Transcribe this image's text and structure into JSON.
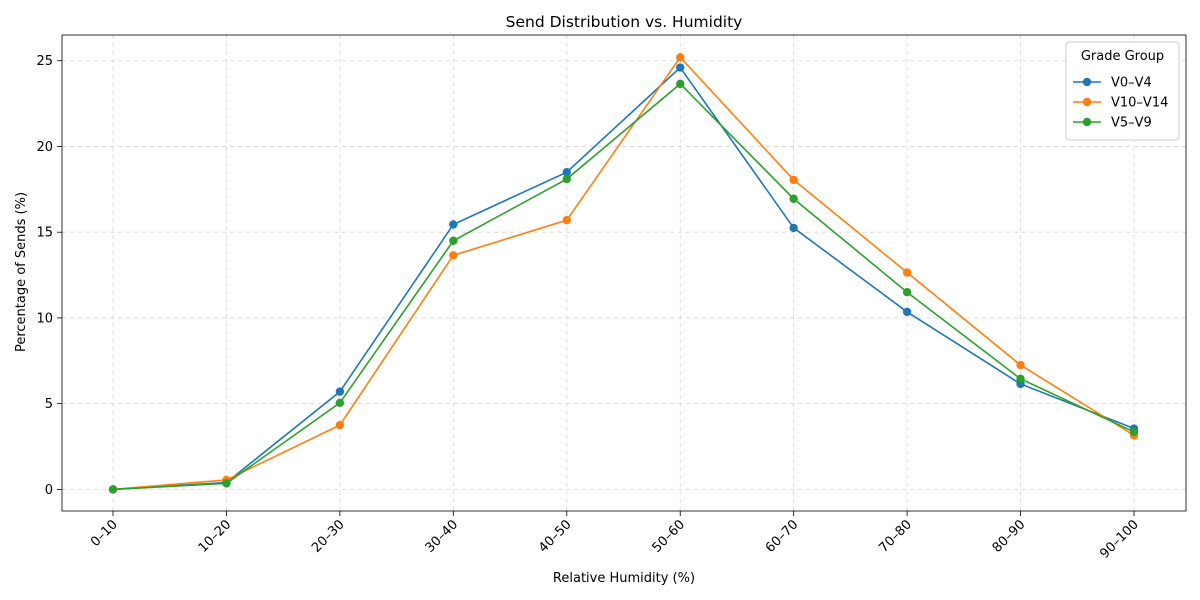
{
  "chart_data": {
    "type": "line",
    "title": "Send Distribution vs. Humidity",
    "xlabel": "Relative Humidity (%)",
    "ylabel": "Percentage of Sends (%)",
    "categories": [
      "0–10",
      "10–20",
      "20–30",
      "30–40",
      "40–50",
      "50–60",
      "60–70",
      "70–80",
      "80–90",
      "90–100"
    ],
    "ylim": [
      -1.26,
      26.5
    ],
    "yticks": [
      0,
      5,
      10,
      15,
      20,
      25
    ],
    "grid": true,
    "legend": {
      "title": "Grade Group",
      "placement": "top-right"
    },
    "series": [
      {
        "name": "V0–V4",
        "color": "#1f77b4",
        "values": [
          0.0,
          0.4,
          5.7,
          15.45,
          18.5,
          24.6,
          15.25,
          10.35,
          6.15,
          3.55
        ]
      },
      {
        "name": "V10–V14",
        "color": "#ff7f0e",
        "values": [
          0.0,
          0.55,
          3.75,
          13.65,
          15.7,
          25.2,
          18.05,
          12.65,
          7.25,
          3.15
        ]
      },
      {
        "name": "V5–V9",
        "color": "#2ca02c",
        "values": [
          0.0,
          0.35,
          5.05,
          14.5,
          18.1,
          23.65,
          16.95,
          11.5,
          6.45,
          3.35
        ]
      }
    ]
  }
}
